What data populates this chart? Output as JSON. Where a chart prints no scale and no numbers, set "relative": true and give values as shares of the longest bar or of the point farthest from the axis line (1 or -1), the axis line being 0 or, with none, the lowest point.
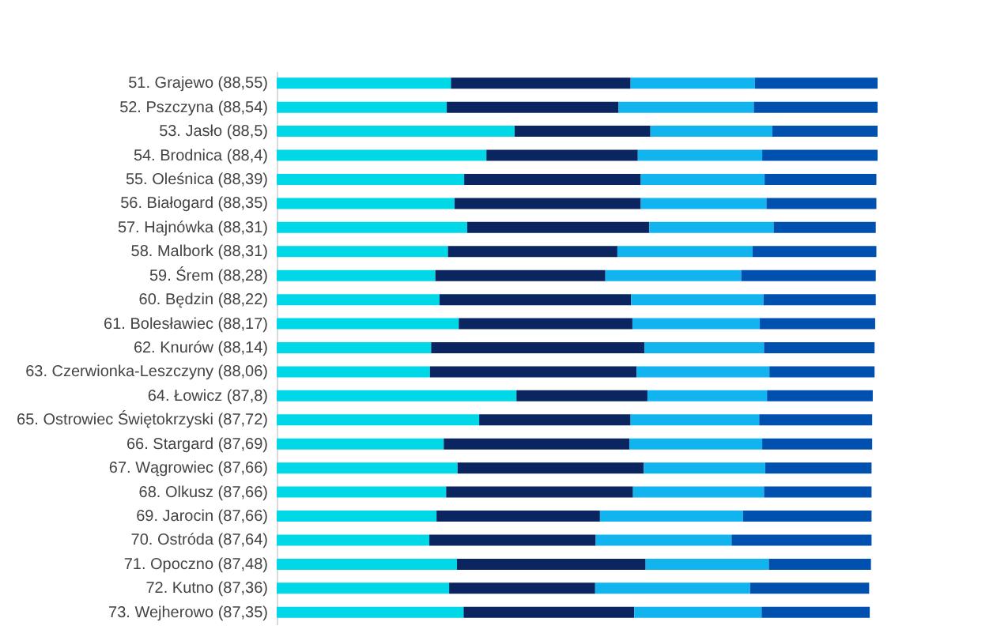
{
  "chart_data": {
    "type": "bar",
    "orientation": "horizontal",
    "stacked": true,
    "relative": true,
    "legend": false,
    "categories": [
      "51. Grajewo (88,55)",
      "52. Pszczyna (88,54)",
      "53. Jasło (88,5)",
      "54. Brodnica (88,4)",
      "55. Oleśnica (88,39)",
      "56. Białogard (88,35)",
      "57. Hajnówka (88,31)",
      "58. Malbork (88,31)",
      "59. Śrem (88,28)",
      "60. Będzin (88,22)",
      "61. Bolesławiec (88,17)",
      "62. Knurów (88,14)",
      "63. Czerwionka-Leszczyny (88,06)",
      "64. Łowicz (87,8)",
      "65. Ostrowiec Świętokrzyski (87,72)",
      "66. Stargard (87,69)",
      "67. Wągrowiec (87,66)",
      "68. Olkusz (87,66)",
      "69. Jarocin (87,66)",
      "70. Ostróda (87,64)",
      "71. Opoczno (87,48)",
      "72. Kutno (87,36)",
      "73. Wejherowo (87,35)"
    ],
    "series": [
      {
        "color": "#00d8e8",
        "values": [
          0.29,
          0.283,
          0.396,
          0.349,
          0.312,
          0.296,
          0.317,
          0.285,
          0.264,
          0.271,
          0.303,
          0.257,
          0.255,
          0.399,
          0.337,
          0.278,
          0.301,
          0.282,
          0.266,
          0.254,
          0.3,
          0.287,
          0.311
        ]
      },
      {
        "color": "#0a2560",
        "values": [
          0.299,
          0.286,
          0.226,
          0.252,
          0.294,
          0.31,
          0.303,
          0.282,
          0.283,
          0.319,
          0.289,
          0.355,
          0.344,
          0.218,
          0.252,
          0.309,
          0.31,
          0.311,
          0.272,
          0.277,
          0.314,
          0.243,
          0.284
        ]
      },
      {
        "color": "#12b4f0",
        "values": [
          0.207,
          0.225,
          0.203,
          0.207,
          0.206,
          0.209,
          0.207,
          0.225,
          0.226,
          0.22,
          0.212,
          0.199,
          0.221,
          0.199,
          0.214,
          0.221,
          0.202,
          0.218,
          0.238,
          0.226,
          0.205,
          0.258,
          0.212
        ]
      },
      {
        "color": "#0050b0",
        "values": [
          0.204,
          0.206,
          0.175,
          0.192,
          0.186,
          0.183,
          0.17,
          0.206,
          0.224,
          0.187,
          0.192,
          0.184,
          0.175,
          0.176,
          0.188,
          0.183,
          0.177,
          0.179,
          0.214,
          0.233,
          0.17,
          0.198,
          0.18
        ]
      }
    ]
  }
}
